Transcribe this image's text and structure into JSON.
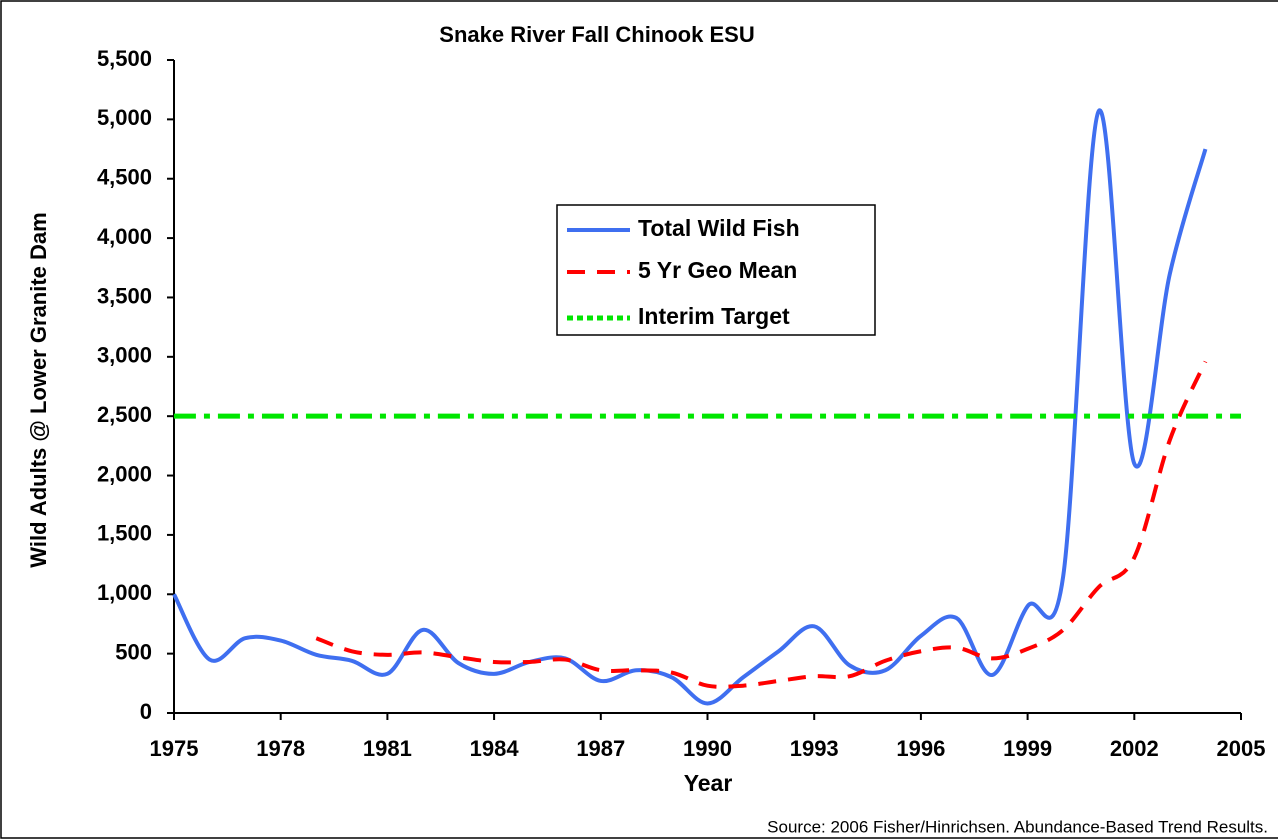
{
  "chart_data": {
    "type": "line",
    "title": "Snake River Fall Chinook ESU",
    "xlabel": "Year",
    "ylabel": "Wild Adults @ Lower Granite Dam",
    "source": "Source:  2006 Fisher/Hinrichsen.  Abundance-Based Trend Results.",
    "xlim": [
      1975,
      2005
    ],
    "xticks": [
      1975,
      1978,
      1981,
      1984,
      1987,
      1990,
      1993,
      1996,
      1999,
      2002,
      2005
    ],
    "ylim": [
      0,
      5500
    ],
    "yticks": [
      0,
      500,
      {
        "value": 1000,
        "label": "1,000"
      },
      {
        "value": 1500,
        "label": "1,500"
      },
      {
        "value": 2000,
        "label": "2,000"
      },
      {
        "value": 2500,
        "label": "2,500"
      },
      {
        "value": 3000,
        "label": "3,000"
      },
      {
        "value": 3500,
        "label": "3,500"
      },
      {
        "value": 4000,
        "label": "4,000"
      },
      {
        "value": 4500,
        "label": "4,500"
      },
      {
        "value": 5000,
        "label": "5,000"
      },
      {
        "value": 5500,
        "label": "5,500"
      }
    ],
    "grid": false,
    "series": [
      {
        "name": "Total Wild Fish",
        "color": "#3f6ff0",
        "x": [
          1975,
          1976,
          1977,
          1978,
          1979,
          1980,
          1981,
          1982,
          1983,
          1984,
          1985,
          1986,
          1987,
          1988,
          1989,
          1990,
          1991,
          1992,
          1993,
          1994,
          1995,
          1996,
          1997,
          1998,
          1999,
          2000,
          2001,
          2002,
          2003,
          2004
        ],
        "values": [
          1000,
          450,
          630,
          610,
          490,
          440,
          330,
          700,
          420,
          330,
          430,
          460,
          270,
          360,
          300,
          80,
          300,
          520,
          730,
          400,
          360,
          650,
          800,
          320,
          900,
          1150,
          5070,
          2100,
          3700,
          4750
        ]
      },
      {
        "name": "5 Yr Geo Mean",
        "color": "#ff0000",
        "x": [
          1979,
          1980,
          1981,
          1982,
          1983,
          1984,
          1985,
          1986,
          1987,
          1988,
          1989,
          1990,
          1991,
          1992,
          1993,
          1994,
          1995,
          1996,
          1997,
          1998,
          1999,
          2000,
          2001,
          2002,
          2003,
          2004
        ],
        "values": [
          630,
          520,
          490,
          510,
          470,
          430,
          430,
          450,
          360,
          360,
          340,
          230,
          230,
          270,
          310,
          310,
          440,
          520,
          550,
          460,
          540,
          700,
          1060,
          1310,
          2300,
          2960
        ]
      },
      {
        "name": "Interim Target",
        "color": "#00e600",
        "x": [
          1975,
          2005
        ],
        "values": [
          2500,
          2500
        ]
      }
    ]
  }
}
